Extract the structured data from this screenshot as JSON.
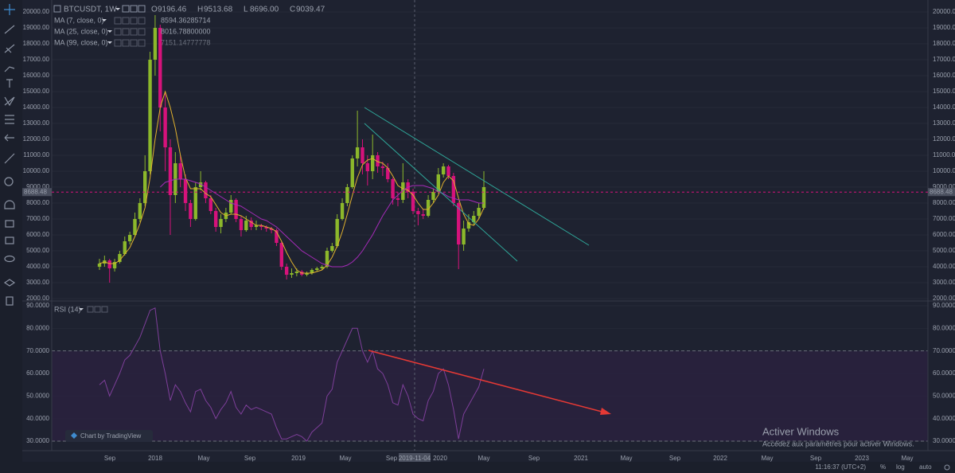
{
  "chart_data": [
    {
      "type": "candlestick",
      "symbol": "BTCUSDT, 1W",
      "ohlc_legend": [
        {
          "key": "O",
          "value": "9196.46"
        },
        {
          "key": "H",
          "value": "9513.68"
        },
        {
          "key": "L",
          "value": "8696.00"
        },
        {
          "key": "C",
          "value": "9039.47"
        }
      ],
      "up_color": "#8cb82b",
      "down_color": "#d6127b",
      "open": [
        4000,
        4200,
        4400,
        3900,
        4300,
        4800,
        5600,
        6000,
        7000,
        8000,
        10000,
        17000,
        19000,
        14000,
        11500,
        8500,
        10500,
        9500,
        8000,
        7000,
        9000,
        9300,
        8300,
        7500,
        6500,
        7000,
        7400,
        8200,
        7000,
        6300,
        6900,
        6500,
        6600,
        6500,
        6400,
        6300,
        5500,
        4000,
        3500,
        3600,
        3700,
        3500,
        3600,
        3800,
        3900,
        4000,
        5000,
        5300,
        7000,
        8000,
        9000,
        10800,
        11500,
        10500,
        10000,
        11000,
        10300,
        10200,
        9500,
        8300,
        8200,
        9300,
        8700,
        7500,
        7300,
        7200,
        8200,
        8700,
        9800,
        10300,
        9700,
        8000,
        5400,
        6400,
        6800,
        7200,
        7700
      ],
      "high": [
        4500,
        4700,
        4500,
        4500,
        5000,
        5900,
        6200,
        7400,
        8300,
        11000,
        17500,
        19800,
        19200,
        15000,
        12000,
        11200,
        11000,
        9800,
        8200,
        9300,
        10000,
        9400,
        8500,
        7700,
        7300,
        7700,
        8500,
        8300,
        7200,
        7200,
        7100,
        6900,
        6700,
        6600,
        6500,
        6400,
        5600,
        4200,
        3900,
        3900,
        3800,
        3700,
        3900,
        4000,
        4100,
        5200,
        5500,
        7300,
        8300,
        9200,
        11000,
        13800,
        12000,
        11000,
        12300,
        11200,
        10600,
        10500,
        9600,
        8700,
        10500,
        9500,
        8900,
        7700,
        7600,
        8500,
        8900,
        10200,
        10500,
        10400,
        9900,
        8100,
        6900,
        7300,
        7500,
        8000,
        10000
      ],
      "low": [
        3800,
        4000,
        3000,
        3700,
        4200,
        4700,
        5400,
        5900,
        6800,
        7800,
        9800,
        16000,
        12500,
        10000,
        6000,
        8000,
        9000,
        7500,
        6500,
        6900,
        8800,
        8000,
        7300,
        6200,
        6100,
        6800,
        7300,
        6800,
        5900,
        6200,
        6300,
        6300,
        6300,
        6200,
        6100,
        5300,
        3800,
        3200,
        3300,
        3400,
        3400,
        3400,
        3500,
        3700,
        3800,
        3900,
        4900,
        5200,
        6900,
        7800,
        8900,
        10300,
        9800,
        9100,
        9500,
        9900,
        9700,
        9300,
        7900,
        7800,
        8000,
        8300,
        7300,
        6600,
        7000,
        7100,
        8000,
        8600,
        9600,
        9500,
        7800,
        3850,
        5000,
        6200,
        6600,
        7000,
        7600
      ],
      "close": [
        4200,
        4400,
        3900,
        4300,
        4800,
        5600,
        6000,
        7000,
        8000,
        10000,
        17000,
        19000,
        14000,
        11500,
        8500,
        10500,
        9500,
        8000,
        7000,
        9000,
        9300,
        8300,
        7500,
        6500,
        7000,
        7400,
        8200,
        7000,
        6300,
        6900,
        6500,
        6600,
        6500,
        6400,
        6300,
        5500,
        4000,
        3500,
        3600,
        3700,
        3500,
        3600,
        3800,
        3900,
        4000,
        5000,
        5300,
        7000,
        8000,
        9000,
        10800,
        11500,
        10500,
        10000,
        11000,
        10300,
        10200,
        9500,
        8300,
        8200,
        9300,
        8700,
        7500,
        7300,
        7200,
        8200,
        8700,
        9800,
        10300,
        9700,
        8000,
        5400,
        6400,
        6800,
        7200,
        7700,
        9000
      ],
      "series": [
        {
          "name": "MA (7, close, 0)",
          "value_label": "8594.36285714",
          "color": "#e0b12e",
          "values": [
            4200,
            4300,
            4200,
            4200,
            4400,
            4800,
            5200,
            5900,
            6700,
            7700,
            9600,
            12000,
            14000,
            15000,
            14000,
            12700,
            11000,
            9600,
            8900,
            8900,
            8900,
            8600,
            8400,
            7900,
            7400,
            7200,
            7300,
            7300,
            7200,
            7000,
            6800,
            6600,
            6600,
            6500,
            6400,
            6200,
            5600,
            4900,
            4300,
            3800,
            3600,
            3600,
            3600,
            3700,
            3800,
            4100,
            4600,
            5300,
            6200,
            7300,
            8500,
            9600,
            10400,
            10700,
            10800,
            10600,
            10500,
            10200,
            9700,
            9100,
            8900,
            8800,
            8500,
            8000,
            7600,
            7600,
            8000,
            8500,
            9300,
            9700,
            9400,
            8300,
            7300,
            6700,
            6600,
            7000,
            7700
          ]
        },
        {
          "name": "MA (25, close, 0)",
          "value_label": "8016.78800000",
          "color": "#a52bb8",
          "values": [
            null,
            null,
            null,
            null,
            null,
            null,
            null,
            null,
            null,
            null,
            null,
            null,
            9000,
            9300,
            9400,
            9500,
            9500,
            9500,
            9400,
            9300,
            9200,
            9000,
            8800,
            8600,
            8400,
            8200,
            8000,
            7900,
            7800,
            7600,
            7400,
            7200,
            7000,
            6900,
            6700,
            6500,
            6200,
            5900,
            5600,
            5300,
            5000,
            4800,
            4600,
            4400,
            4200,
            4100,
            4000,
            4000,
            4000,
            4100,
            4300,
            4600,
            5000,
            5500,
            6000,
            6600,
            7200,
            7700,
            8200,
            8500,
            8800,
            9000,
            9100,
            9100,
            9100,
            9000,
            8900,
            8700,
            8600,
            8400,
            8300,
            8200,
            8200,
            8200,
            8100,
            8000,
            8000
          ]
        },
        {
          "name": "MA (99, close, 0)",
          "value_label": "7151.14777778",
          "color": "#7a3f7f"
        }
      ],
      "last_price": 8688.48,
      "ylim": [
        2000,
        20000
      ],
      "yticks": [
        {
          "value": 20000,
          "label": "20000.00"
        },
        {
          "value": 19000,
          "label": "19000.00"
        },
        {
          "value": 18000,
          "label": "18000.00"
        },
        {
          "value": 17000,
          "label": "17000.00"
        },
        {
          "value": 16000,
          "label": "16000.00"
        },
        {
          "value": 15000,
          "label": "15000.00"
        },
        {
          "value": 14000,
          "label": "14000.00"
        },
        {
          "value": 13000,
          "label": "13000.00"
        },
        {
          "value": 12000,
          "label": "12000.00"
        },
        {
          "value": 11000,
          "label": "11000.00"
        },
        {
          "value": 10000,
          "label": "10000.00"
        },
        {
          "value": 9000,
          "label": "9000.00"
        },
        {
          "value": 8000,
          "label": "8000.00"
        },
        {
          "value": 7000,
          "label": "7000.00"
        },
        {
          "value": 6000,
          "label": "6000.00"
        },
        {
          "value": 5000,
          "label": "5000.00"
        },
        {
          "value": 4000,
          "label": "4000.00"
        },
        {
          "value": 3000,
          "label": "3000.00"
        },
        {
          "value": 2000,
          "label": "2000.00"
        }
      ],
      "grid": true
    },
    {
      "type": "line",
      "title": "RSI (14)",
      "series": [
        {
          "name": "RSI",
          "color": "#7e3f9a",
          "values": [
            55,
            57,
            50,
            55,
            60,
            66,
            68,
            72,
            76,
            82,
            88,
            89,
            70,
            60,
            48,
            55,
            52,
            47,
            43,
            52,
            53,
            48,
            45,
            40,
            44,
            47,
            52,
            45,
            42,
            46,
            44,
            45,
            44,
            43,
            42,
            36,
            31,
            31,
            32,
            33,
            32,
            30,
            34,
            36,
            38,
            50,
            53,
            65,
            70,
            75,
            80,
            80,
            70,
            65,
            70,
            62,
            60,
            55,
            47,
            46,
            55,
            50,
            42,
            40,
            39,
            48,
            52,
            60,
            62,
            55,
            44,
            31,
            42,
            46,
            50,
            54,
            62
          ]
        }
      ],
      "levels": [
        70,
        30
      ],
      "band_color": "#2a2240",
      "ylim": [
        30,
        90
      ],
      "yticks": [
        {
          "value": 90,
          "label": "90.0000"
        },
        {
          "value": 80,
          "label": "80.0000"
        },
        {
          "value": 70,
          "label": "70.0000"
        },
        {
          "value": 60,
          "label": "60.0000"
        },
        {
          "value": 50,
          "label": "50.0000"
        },
        {
          "value": 40,
          "label": "40.0000"
        },
        {
          "value": 30,
          "label": "30.0000"
        }
      ],
      "grid": true
    }
  ],
  "time_axis": {
    "labels": [
      "Sep",
      "2018",
      "May",
      "Sep",
      "2019",
      "May",
      "Sep",
      "2019-11-04",
      "2020",
      "May",
      "Sep",
      "2021",
      "May",
      "Sep",
      "2022",
      "May",
      "Sep",
      "2023",
      "May"
    ]
  },
  "badge": "Chart by TradingView",
  "watermark": {
    "title": "Activer Windows",
    "text": "Accédez aux paramètres pour activer Windows."
  },
  "status_bar": {
    "clock": "11:16:37 (UTC+2)",
    "percent": "%",
    "log": "log",
    "auto": "auto"
  }
}
